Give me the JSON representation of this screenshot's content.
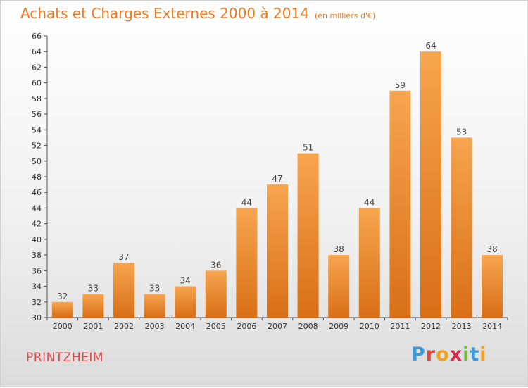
{
  "header": {
    "title": "Achats et Charges Externes 2000 à 2014",
    "subtitle": "(en milliers d'€)"
  },
  "footer": {
    "commune": "PRINTZHEIM",
    "brand": {
      "text": "Proxiti",
      "letters": [
        {
          "ch": "P",
          "color": "#3a9bd8"
        },
        {
          "ch": "r",
          "color": "#e8443a"
        },
        {
          "ch": "o",
          "color": "#f3a21b"
        },
        {
          "ch": "x",
          "color": "#d6284a"
        },
        {
          "ch": "i",
          "color": "#7ab83a"
        },
        {
          "ch": "t",
          "color": "#3a9bd8"
        },
        {
          "ch": "i",
          "color": "#f3a21b"
        }
      ]
    }
  },
  "chart_data": {
    "type": "bar",
    "title": "Achats et Charges Externes 2000 à 2014",
    "subtitle": "(en milliers d'€)",
    "categories": [
      "2000",
      "2001",
      "2002",
      "2003",
      "2004",
      "2005",
      "2006",
      "2007",
      "2008",
      "2009",
      "2010",
      "2011",
      "2012",
      "2013",
      "2014"
    ],
    "values": [
      32,
      33,
      37,
      33,
      34,
      36,
      44,
      47,
      51,
      38,
      44,
      59,
      64,
      53,
      38
    ],
    "ylim": [
      30,
      66
    ],
    "yticks": [
      30,
      32,
      34,
      36,
      38,
      40,
      42,
      44,
      46,
      48,
      50,
      52,
      54,
      56,
      58,
      60,
      62,
      64,
      66
    ],
    "grid": false,
    "data_labels": true,
    "colors": {
      "bar_light": "#f7a54f",
      "bar_dark": "#d86f17",
      "title": "#f07a1e",
      "commune": "#e24b4b"
    }
  }
}
